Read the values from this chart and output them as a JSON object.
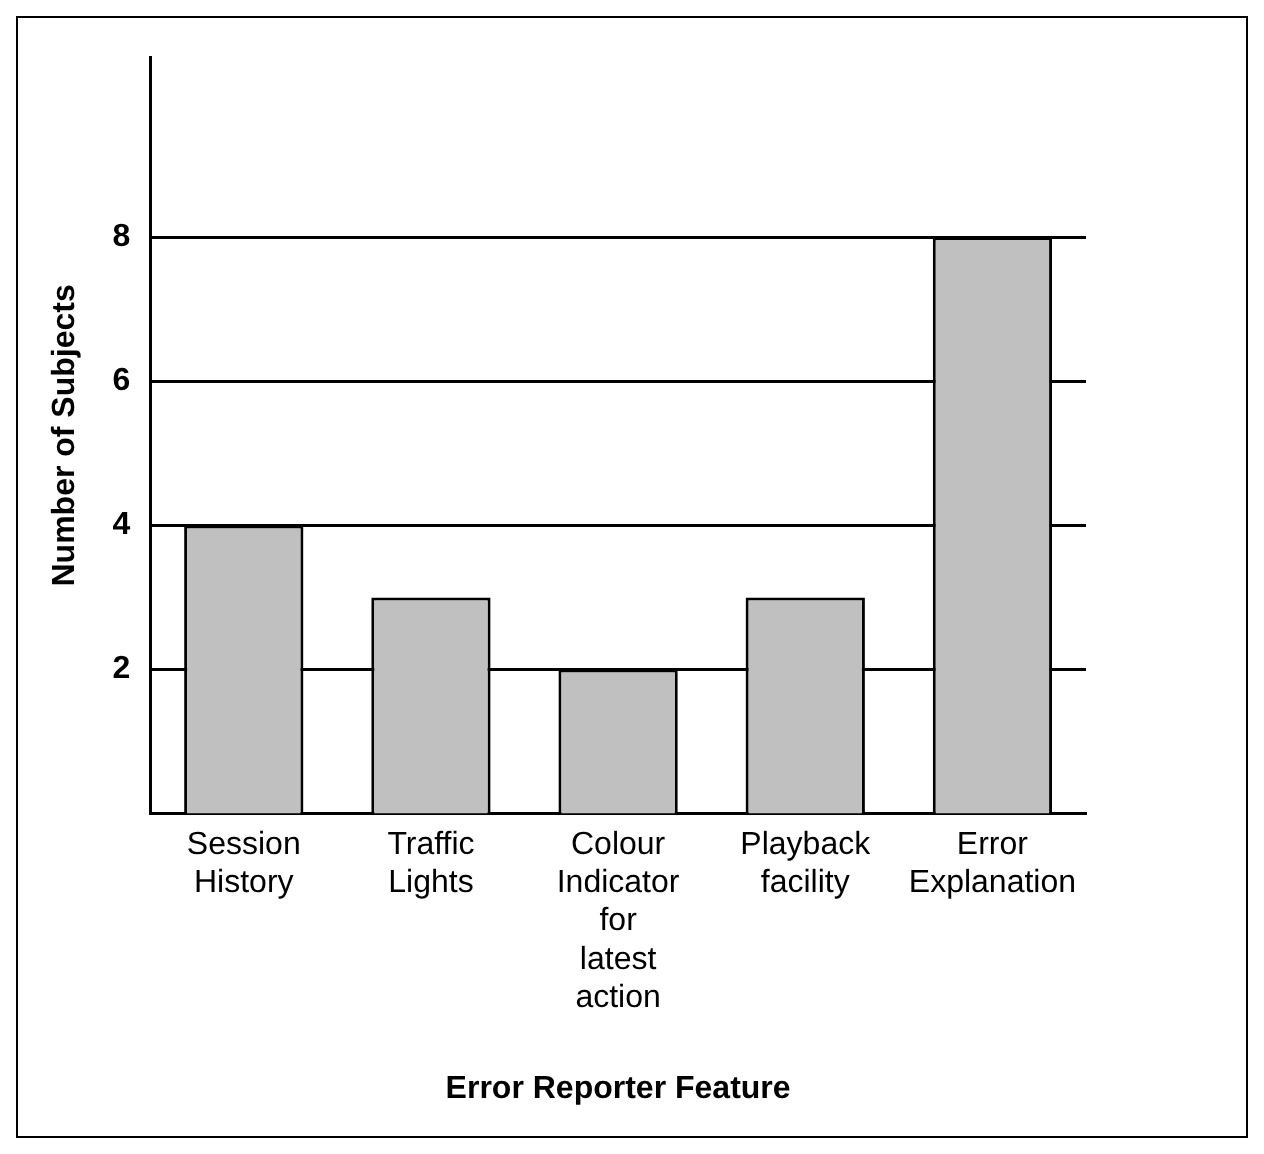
{
  "chart_data": {
    "type": "bar",
    "xlabel": "Error Reporter Feature",
    "ylabel": "Number of Subjects",
    "categories": [
      "Session History",
      "Traffic Lights",
      "Colour Indicator for latest action",
      "Playback facility",
      "Error Explanation"
    ],
    "values": [
      4,
      3,
      2,
      3,
      8
    ],
    "color": "#c0c0c0",
    "ylim": [
      0,
      10.5
    ],
    "yticks": [
      2,
      4,
      6,
      8
    ],
    "grid": "y",
    "legend": false
  }
}
